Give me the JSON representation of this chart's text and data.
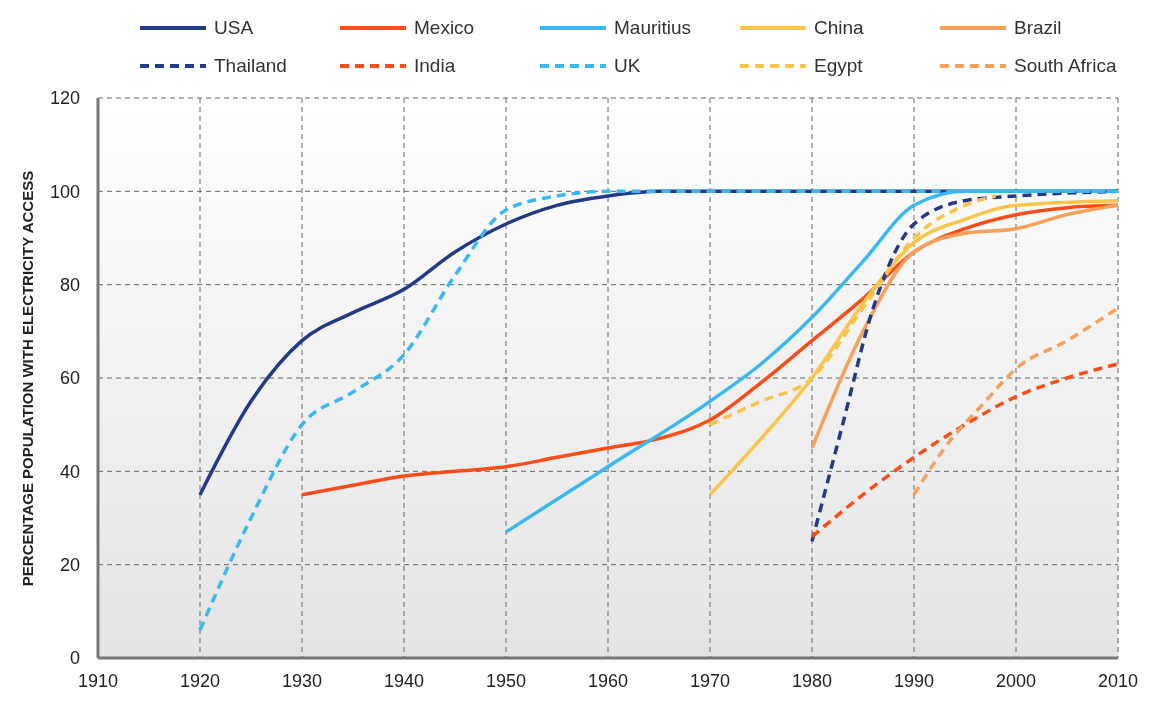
{
  "chart_data": {
    "type": "line",
    "ylabel": "PERCENTAGE POPULATION WITH ELECTRICITY ACCESS",
    "xlim": [
      1910,
      2010
    ],
    "xticks": [
      1910,
      1920,
      1930,
      1940,
      1950,
      1960,
      1970,
      1980,
      1990,
      2000,
      2010
    ],
    "ylim": [
      0,
      120
    ],
    "yticks": [
      0,
      20,
      40,
      60,
      80,
      100,
      120
    ],
    "grid": true,
    "legend": "top",
    "marker": "none",
    "series": [
      {
        "name": "USA",
        "color": "#233a86",
        "line_style": "solid",
        "x": [
          1920,
          1925,
          1930,
          1935,
          1940,
          1945,
          1950,
          1955,
          1960,
          1965,
          1970,
          1980,
          1990,
          2000,
          2010
        ],
        "values": [
          35,
          55,
          68,
          74,
          79,
          87,
          93,
          97,
          99,
          100,
          100,
          100,
          100,
          100,
          100
        ]
      },
      {
        "name": "Mexico",
        "color": "#ff4d1a",
        "line_style": "solid",
        "x": [
          1930,
          1935,
          1940,
          1945,
          1950,
          1955,
          1960,
          1965,
          1970,
          1975,
          1980,
          1985,
          1990,
          1995,
          2000,
          2005,
          2010
        ],
        "values": [
          35,
          37,
          39,
          40,
          41,
          43,
          45,
          47,
          51,
          59,
          68,
          77,
          87,
          92,
          95,
          96.5,
          97
        ]
      },
      {
        "name": "Mauritius",
        "color": "#3ab8f2",
        "line_style": "solid",
        "x": [
          1950,
          1960,
          1970,
          1975,
          1980,
          1985,
          1990,
          1995,
          2000,
          2010
        ],
        "values": [
          27,
          41,
          55,
          63,
          73,
          85,
          97,
          100,
          100,
          100
        ]
      },
      {
        "name": "China",
        "color": "#fcc44a",
        "line_style": "solid",
        "x": [
          1970,
          1975,
          1980,
          1985,
          1990,
          1995,
          2000,
          2010
        ],
        "values": [
          35,
          47,
          60,
          76,
          89,
          94,
          97,
          98
        ]
      },
      {
        "name": "Brazil",
        "color": "#f9a05a",
        "line_style": "solid",
        "x": [
          1980,
          1985,
          1990,
          1995,
          2000,
          2005,
          2010
        ],
        "values": [
          45,
          70,
          87,
          91,
          92,
          95,
          97
        ]
      },
      {
        "name": "Thailand",
        "color": "#233a86",
        "line_style": "dashed",
        "x": [
          1980,
          1983,
          1986,
          1990,
          1995,
          2000,
          2010
        ],
        "values": [
          25,
          50,
          75,
          93,
          98,
          99,
          100
        ]
      },
      {
        "name": "India",
        "color": "#ff4d1a",
        "line_style": "dashed",
        "x": [
          1980,
          1985,
          1990,
          1995,
          2000,
          2005,
          2010
        ],
        "values": [
          26,
          35,
          43,
          50,
          56,
          60,
          63
        ]
      },
      {
        "name": "UK",
        "color": "#3ab8f2",
        "line_style": "dashed",
        "x": [
          1920,
          1925,
          1930,
          1935,
          1940,
          1945,
          1950,
          1955,
          1960,
          1970,
          1980,
          2010
        ],
        "values": [
          6,
          30,
          50,
          57,
          65,
          82,
          96,
          99,
          100,
          100,
          100,
          100
        ]
      },
      {
        "name": "Egypt",
        "color": "#fcc44a",
        "line_style": "dashed",
        "x": [
          1970,
          1975,
          1980,
          1985,
          1990,
          1995,
          1998
        ],
        "values": [
          50,
          55,
          60,
          75,
          90,
          97,
          99
        ]
      },
      {
        "name": "South Africa",
        "color": "#f9a05a",
        "line_style": "dashed",
        "x": [
          1990,
          1993,
          1997,
          2000,
          2005,
          2010
        ],
        "values": [
          35,
          45,
          55,
          62,
          68,
          75
        ]
      }
    ]
  }
}
